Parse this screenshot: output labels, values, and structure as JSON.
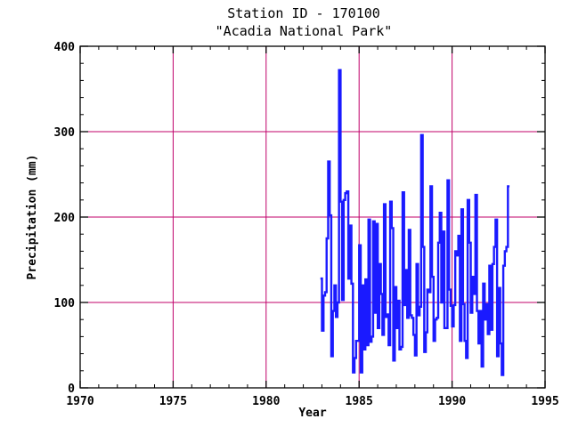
{
  "chart_data": {
    "type": "line",
    "title": "Station ID - 170100",
    "subtitle": "\"Acadia National Park\"",
    "xlabel": "Year",
    "ylabel": "Precipitation (mm)",
    "xlim": [
      1970,
      1995
    ],
    "ylim": [
      0,
      400
    ],
    "x_ticks": [
      1970,
      1975,
      1980,
      1985,
      1990,
      1995
    ],
    "y_ticks": [
      0,
      100,
      200,
      300,
      400
    ],
    "grid": true,
    "grid_color": "#c0006a",
    "line_color": "#1a1aff",
    "step": "monthly",
    "series": [
      {
        "start": 1982.92,
        "values": [
          128,
          67,
          108,
          112,
          175,
          265,
          202,
          37,
          90,
          120,
          83,
          100,
          372,
          218,
          103,
          220,
          228,
          230,
          128,
          190,
          122,
          18,
          35,
          55,
          55,
          167,
          18,
          120,
          45,
          127,
          50,
          197,
          54,
          60,
          195,
          88,
          192,
          70,
          145,
          110,
          62,
          215,
          83,
          86,
          50,
          218,
          187,
          32,
          118,
          70,
          102,
          45,
          48,
          229,
          97,
          138,
          82,
          185,
          85,
          82,
          62,
          38,
          145,
          85,
          95,
          296,
          165,
          42,
          65,
          115,
          112,
          236,
          130,
          55,
          80,
          82,
          170,
          205,
          100,
          183,
          70,
          70,
          243,
          115,
          96,
          72,
          97,
          160,
          155,
          178,
          55,
          209,
          98,
          55,
          35,
          220,
          170,
          88,
          130,
          110,
          226,
          90,
          52,
          90,
          25,
          122,
          80,
          98,
          63,
          143,
          68,
          145,
          165,
          197,
          37,
          117,
          52,
          15,
          143,
          160,
          165,
          236
        ]
      }
    ]
  }
}
